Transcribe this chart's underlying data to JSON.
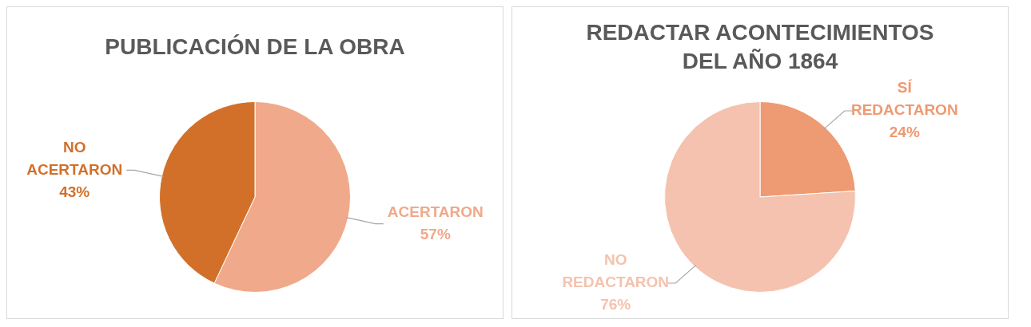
{
  "chart_data": [
    {
      "type": "pie",
      "title": "PUBLICACIÓN DE LA OBRA",
      "categories": [
        "ACERTARON",
        "NO ACERTARON"
      ],
      "values": [
        57,
        43
      ],
      "colors": [
        "#f0a98a",
        "#d2702a"
      ],
      "value_labels": [
        "57%",
        "43%"
      ]
    },
    {
      "type": "pie",
      "title": "REDACTAR ACONTECIMIENTOS DEL AÑO 1864",
      "categories": [
        "SÍ REDACTARON",
        "NO REDACTARON"
      ],
      "values": [
        24,
        76
      ],
      "colors": [
        "#ee9a72",
        "#f4c2ae"
      ],
      "value_labels": [
        "24%",
        "76%"
      ]
    }
  ]
}
